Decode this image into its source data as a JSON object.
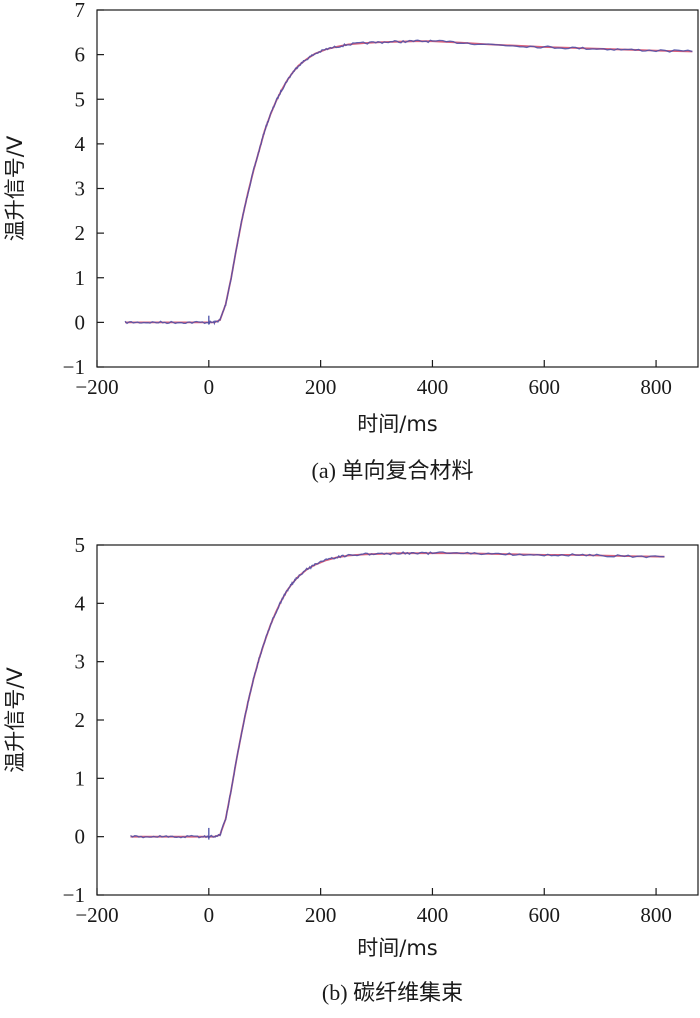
{
  "chart_data": [
    {
      "type": "line",
      "caption": "(a) 单向复合材料",
      "xlabel": "时间/ms",
      "ylabel": "温升信号/V",
      "xlim": [
        -200,
        875
      ],
      "ylim": [
        -1,
        7
      ],
      "xticks": [
        -200,
        0,
        200,
        400,
        600,
        800
      ],
      "yticks": [
        -1,
        0,
        1,
        2,
        3,
        4,
        5,
        6,
        7
      ],
      "colors": {
        "raw": "#4a4fa8",
        "fit": "#d9607a"
      },
      "series": [
        {
          "x": [
            -150,
            -120,
            -90,
            -60,
            -30,
            0,
            10,
            20,
            30,
            40,
            50,
            60,
            70,
            80,
            90,
            100,
            110,
            120,
            130,
            140,
            150,
            160,
            175,
            190,
            210,
            230,
            250,
            280,
            310,
            340,
            370,
            400,
            450,
            500,
            550,
            600,
            650,
            700,
            750,
            800,
            865
          ],
          "y": [
            0.0,
            0.0,
            0.0,
            0.0,
            0.0,
            0.0,
            0.0,
            0.05,
            0.4,
            1.0,
            1.7,
            2.35,
            2.9,
            3.4,
            3.85,
            4.3,
            4.65,
            4.95,
            5.2,
            5.42,
            5.6,
            5.75,
            5.9,
            6.02,
            6.12,
            6.18,
            6.23,
            6.26,
            6.28,
            6.29,
            6.3,
            6.3,
            6.27,
            6.23,
            6.2,
            6.17,
            6.15,
            6.13,
            6.11,
            6.09,
            6.07
          ]
        }
      ]
    },
    {
      "type": "line",
      "caption": "(b) 碳纤维集束",
      "xlabel": "时间/ms",
      "ylabel": "温升信号/V",
      "xlim": [
        -200,
        875
      ],
      "ylim": [
        -1,
        5
      ],
      "xticks": [
        -200,
        0,
        200,
        400,
        600,
        800
      ],
      "yticks": [
        -1,
        0,
        1,
        2,
        3,
        4,
        5
      ],
      "colors": {
        "raw": "#4a4fa8",
        "fit": "#d9607a"
      },
      "series": [
        {
          "x": [
            -140,
            -110,
            -80,
            -50,
            -20,
            0,
            10,
            20,
            30,
            40,
            50,
            60,
            70,
            80,
            90,
            100,
            110,
            120,
            130,
            140,
            150,
            160,
            175,
            190,
            210,
            230,
            250,
            280,
            310,
            340,
            370,
            400,
            450,
            500,
            550,
            600,
            650,
            700,
            750,
            815
          ],
          "y": [
            0.0,
            0.0,
            0.0,
            0.0,
            0.0,
            0.0,
            0.0,
            0.03,
            0.3,
            0.8,
            1.35,
            1.85,
            2.3,
            2.7,
            3.05,
            3.35,
            3.62,
            3.85,
            4.05,
            4.22,
            4.35,
            4.46,
            4.58,
            4.66,
            4.74,
            4.79,
            4.82,
            4.84,
            4.85,
            4.86,
            4.86,
            4.86,
            4.86,
            4.85,
            4.84,
            4.83,
            4.83,
            4.82,
            4.81,
            4.8
          ]
        }
      ]
    }
  ]
}
